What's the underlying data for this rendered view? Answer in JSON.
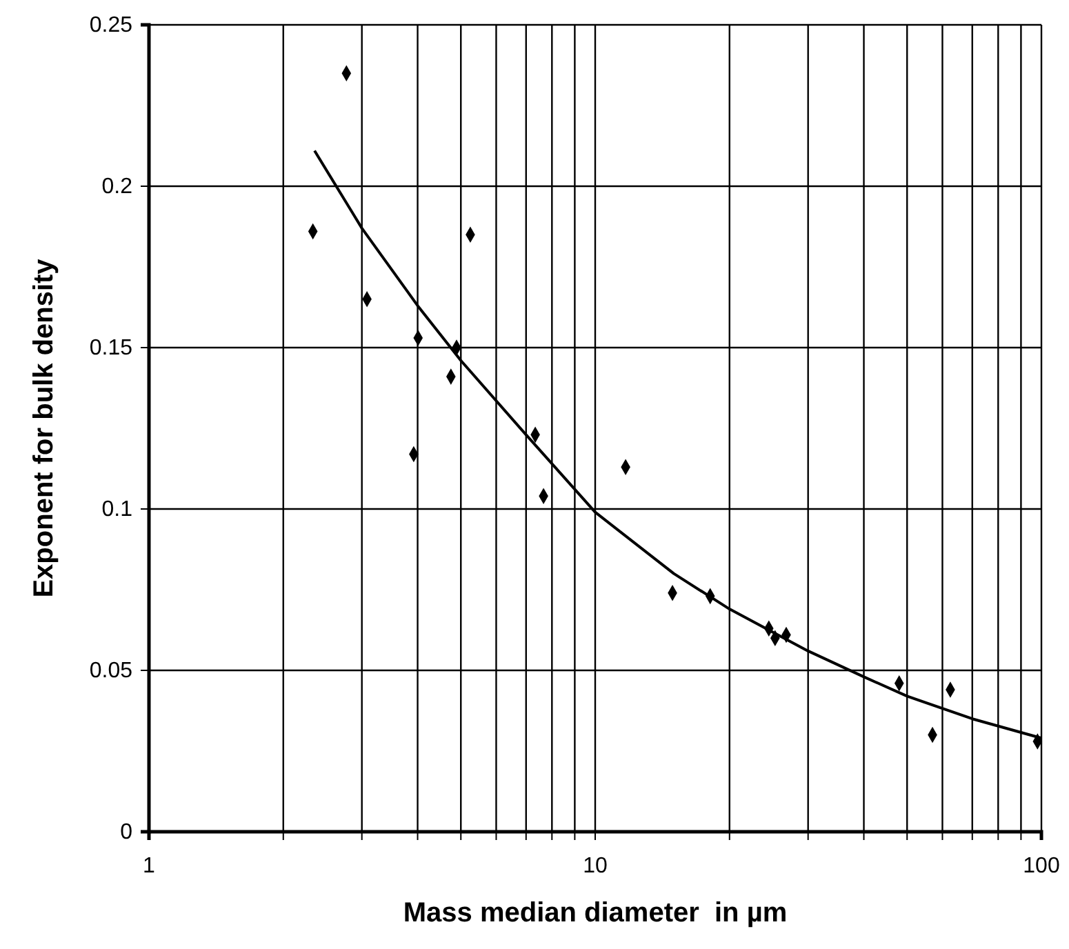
{
  "chart_data": {
    "type": "scatter",
    "xlabel": "Mass median diameter  in µm",
    "ylabel": "Exponent for bulk density",
    "log": "x",
    "xlim": [
      1,
      100
    ],
    "ylim": [
      0,
      0.25
    ],
    "xticks": [
      1,
      {
        "value": 2,
        "label": null
      },
      {
        "value": 3,
        "label": null
      },
      {
        "value": 4,
        "label": null
      },
      {
        "value": 5,
        "label": null
      },
      {
        "value": 6,
        "label": null
      },
      {
        "value": 7,
        "label": null
      },
      {
        "value": 8,
        "label": null
      },
      {
        "value": 9,
        "label": null
      },
      10,
      {
        "value": 20,
        "label": null
      },
      {
        "value": 30,
        "label": null
      },
      {
        "value": 40,
        "label": null
      },
      {
        "value": 50,
        "label": null
      },
      {
        "value": 60,
        "label": null
      },
      {
        "value": 70,
        "label": null
      },
      {
        "value": 80,
        "label": null
      },
      {
        "value": 90,
        "label": null
      },
      100
    ],
    "yticks": [
      0,
      0.05,
      0.1,
      0.15,
      0.2,
      0.25
    ],
    "grid": true,
    "series": [
      {
        "color": "#000000",
        "marker": "diamond",
        "x": [
          2.33,
          2.77,
          3.08,
          4.01,
          3.92,
          4.89,
          4.75,
          5.25,
          7.34,
          7.66,
          11.7,
          14.9,
          18.1,
          24.5,
          25.3,
          26.8,
          48,
          57,
          62.5,
          98
        ],
        "values": [
          0.186,
          0.235,
          0.165,
          0.153,
          0.117,
          0.15,
          0.141,
          0.185,
          0.123,
          0.104,
          0.113,
          0.074,
          0.073,
          0.063,
          0.06,
          0.061,
          0.046,
          0.03,
          0.044,
          0.028
        ]
      },
      {
        "type": "line",
        "color": "#000000",
        "marker": "none",
        "line_style": "solid",
        "x": [
          2.35,
          3,
          4,
          5,
          7,
          10,
          15,
          20,
          30,
          40,
          50,
          70,
          100
        ],
        "values": [
          0.211,
          0.187,
          0.163,
          0.146,
          0.123,
          0.099,
          0.08,
          0.069,
          0.056,
          0.048,
          0.042,
          0.035,
          0.029
        ]
      }
    ]
  }
}
